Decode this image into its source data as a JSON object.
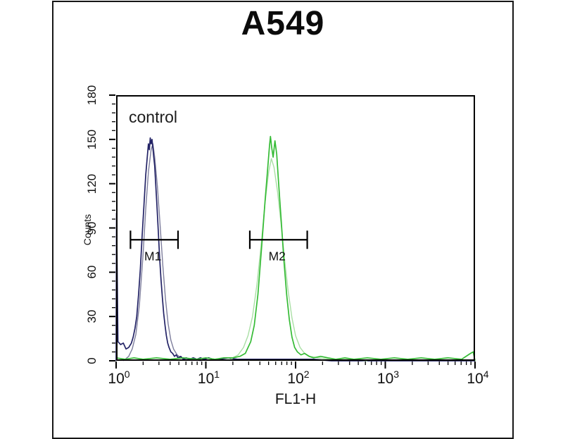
{
  "page": {
    "background_color": "#ffffff",
    "panel_border_color": "#161616"
  },
  "header": {
    "title": "A549"
  },
  "chart_data": {
    "type": "line",
    "subtype": "flow-cytometry-histogram-overlay",
    "title": "A549",
    "xlabel": "FL1-H",
    "ylabel": "Counts",
    "x_scale": "log10",
    "x_decade_exponents": [
      0,
      1,
      2,
      3,
      4
    ],
    "xlim_log": [
      0,
      4
    ],
    "ylim": [
      0,
      180
    ],
    "y_ticks": [
      0,
      30,
      60,
      90,
      120,
      150,
      180
    ],
    "y_minor_step": 6,
    "grid": false,
    "legend": "none",
    "annotation": {
      "text": "control",
      "position": "top-left"
    },
    "axis_color": "#000000",
    "series": [
      {
        "name": "control-gray",
        "color": "#7d7d9c",
        "width": 1.4,
        "points": [
          [
            0.08,
            0
          ],
          [
            0.1,
            1
          ],
          [
            0.14,
            3
          ],
          [
            0.18,
            8
          ],
          [
            0.22,
            18
          ],
          [
            0.26,
            38
          ],
          [
            0.3,
            72
          ],
          [
            0.33,
            103
          ],
          [
            0.36,
            128
          ],
          [
            0.39,
            143
          ],
          [
            0.41,
            147
          ],
          [
            0.43,
            138
          ],
          [
            0.46,
            118
          ],
          [
            0.49,
            92
          ],
          [
            0.52,
            65
          ],
          [
            0.55,
            42
          ],
          [
            0.58,
            25
          ],
          [
            0.61,
            14
          ],
          [
            0.64,
            8
          ],
          [
            0.68,
            4
          ],
          [
            0.72,
            2
          ],
          [
            0.78,
            1
          ],
          [
            0.85,
            1
          ],
          [
            0.95,
            0
          ]
        ]
      },
      {
        "name": "control-navy",
        "color": "#232366",
        "width": 1.7,
        "points": [
          [
            0,
            0
          ],
          [
            0.005,
            100
          ],
          [
            0.02,
            13
          ],
          [
            0.05,
            11
          ],
          [
            0.08,
            12
          ],
          [
            0.11,
            8
          ],
          [
            0.14,
            9
          ],
          [
            0.17,
            12
          ],
          [
            0.19,
            16
          ],
          [
            0.21,
            22
          ],
          [
            0.23,
            30
          ],
          [
            0.25,
            45
          ],
          [
            0.27,
            62
          ],
          [
            0.29,
            85
          ],
          [
            0.31,
            105
          ],
          [
            0.33,
            126
          ],
          [
            0.35,
            140
          ],
          [
            0.36,
            147
          ],
          [
            0.37,
            143
          ],
          [
            0.38,
            151
          ],
          [
            0.39,
            147
          ],
          [
            0.4,
            150
          ],
          [
            0.41,
            144
          ],
          [
            0.42,
            138
          ],
          [
            0.43,
            132
          ],
          [
            0.44,
            121
          ],
          [
            0.455,
            105
          ],
          [
            0.47,
            88
          ],
          [
            0.485,
            70
          ],
          [
            0.5,
            55
          ],
          [
            0.515,
            43
          ],
          [
            0.53,
            32
          ],
          [
            0.545,
            24
          ],
          [
            0.56,
            17
          ],
          [
            0.575,
            12
          ],
          [
            0.59,
            9
          ],
          [
            0.61,
            6
          ],
          [
            0.63,
            5
          ],
          [
            0.65,
            3
          ],
          [
            0.67,
            4
          ],
          [
            0.69,
            2
          ],
          [
            0.72,
            3
          ],
          [
            0.75,
            1
          ],
          [
            0.78,
            2
          ],
          [
            0.82,
            1
          ],
          [
            0.86,
            2
          ],
          [
            0.9,
            1
          ],
          [
            0.94,
            2
          ],
          [
            0.98,
            1
          ],
          [
            1.03,
            2
          ],
          [
            1.08,
            1
          ],
          [
            1.15,
            1
          ],
          [
            1.25,
            2
          ],
          [
            1.35,
            1
          ],
          [
            1.45,
            1
          ],
          [
            1.6,
            1
          ],
          [
            1.8,
            1
          ],
          [
            2.0,
            1
          ],
          [
            2.2,
            1
          ],
          [
            2.4,
            0
          ],
          [
            4.0,
            0
          ]
        ]
      },
      {
        "name": "stained-green-pale",
        "color": "#a9dfa4",
        "width": 1.4,
        "points": [
          [
            1.26,
            0
          ],
          [
            1.3,
            2
          ],
          [
            1.36,
            4
          ],
          [
            1.42,
            9
          ],
          [
            1.47,
            17
          ],
          [
            1.52,
            30
          ],
          [
            1.57,
            52
          ],
          [
            1.62,
            81
          ],
          [
            1.66,
            107
          ],
          [
            1.7,
            128
          ],
          [
            1.73,
            137
          ],
          [
            1.76,
            131
          ],
          [
            1.8,
            114
          ],
          [
            1.84,
            92
          ],
          [
            1.88,
            67
          ],
          [
            1.92,
            46
          ],
          [
            1.96,
            29
          ],
          [
            2.0,
            17
          ],
          [
            2.05,
            9
          ],
          [
            2.1,
            5
          ],
          [
            2.16,
            3
          ],
          [
            2.25,
            2
          ],
          [
            2.4,
            1
          ],
          [
            2.6,
            1
          ],
          [
            2.8,
            0
          ]
        ]
      },
      {
        "name": "stained-green-bright",
        "color": "#35bb35",
        "width": 1.7,
        "points": [
          [
            0,
            2
          ],
          [
            0.1,
            1
          ],
          [
            0.2,
            2
          ],
          [
            0.3,
            1
          ],
          [
            0.45,
            2
          ],
          [
            0.6,
            1
          ],
          [
            0.75,
            2
          ],
          [
            0.9,
            1
          ],
          [
            1.0,
            2
          ],
          [
            1.1,
            1
          ],
          [
            1.2,
            2
          ],
          [
            1.3,
            2
          ],
          [
            1.38,
            3
          ],
          [
            1.44,
            5
          ],
          [
            1.5,
            13
          ],
          [
            1.54,
            24
          ],
          [
            1.58,
            45
          ],
          [
            1.62,
            76
          ],
          [
            1.66,
            108
          ],
          [
            1.69,
            131
          ],
          [
            1.71,
            146
          ],
          [
            1.72,
            152
          ],
          [
            1.735,
            144
          ],
          [
            1.75,
            138
          ],
          [
            1.77,
            149
          ],
          [
            1.79,
            140
          ],
          [
            1.81,
            121
          ],
          [
            1.84,
            95
          ],
          [
            1.87,
            68
          ],
          [
            1.9,
            45
          ],
          [
            1.93,
            28
          ],
          [
            1.96,
            16
          ],
          [
            1.99,
            9
          ],
          [
            2.02,
            6
          ],
          [
            2.06,
            4
          ],
          [
            2.1,
            5
          ],
          [
            2.15,
            3
          ],
          [
            2.2,
            2
          ],
          [
            2.28,
            3
          ],
          [
            2.36,
            2
          ],
          [
            2.45,
            1
          ],
          [
            2.55,
            2
          ],
          [
            2.65,
            1
          ],
          [
            2.8,
            2
          ],
          [
            2.95,
            1
          ],
          [
            3.1,
            2
          ],
          [
            3.25,
            1
          ],
          [
            3.4,
            2
          ],
          [
            3.55,
            1
          ],
          [
            3.7,
            2
          ],
          [
            3.85,
            1
          ],
          [
            3.95,
            5
          ],
          [
            3.98,
            6
          ],
          [
            4.0,
            0
          ]
        ]
      }
    ],
    "markers": [
      {
        "label": "M1",
        "x_log_from": 0.16,
        "x_log_to": 0.69,
        "y_counts": 82
      },
      {
        "label": "M2",
        "x_log_from": 1.49,
        "x_log_to": 2.13,
        "y_counts": 82
      }
    ]
  }
}
